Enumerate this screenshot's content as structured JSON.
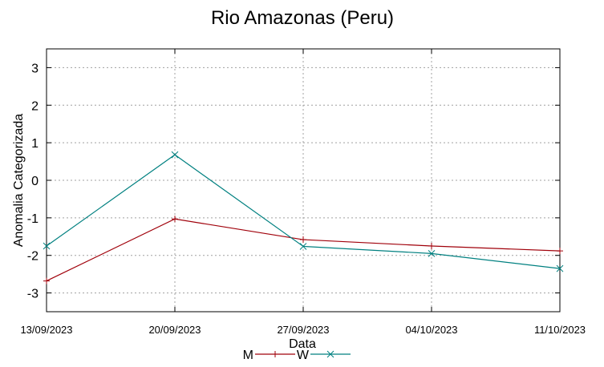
{
  "chart_data": {
    "type": "line",
    "title": "Rio Amazonas (Peru)",
    "xlabel": "Data",
    "ylabel": "Anomalia Categorizada",
    "categories": [
      "13/09/2023",
      "20/09/2023",
      "27/09/2023",
      "04/10/2023",
      "11/10/2023"
    ],
    "ylim": [
      -3.5,
      3.5
    ],
    "yticks": [
      -3,
      -2,
      -1,
      0,
      1,
      2,
      3
    ],
    "grid": true,
    "legend": "bottom-center",
    "series": [
      {
        "name": "M",
        "values": [
          -2.68,
          -1.03,
          -1.58,
          -1.75,
          -1.88
        ],
        "color": "#a0000a",
        "marker": "plus"
      },
      {
        "name": "W",
        "values": [
          -1.75,
          0.68,
          -1.76,
          -1.95,
          -2.35
        ],
        "color": "#008080",
        "marker": "cross"
      }
    ]
  }
}
